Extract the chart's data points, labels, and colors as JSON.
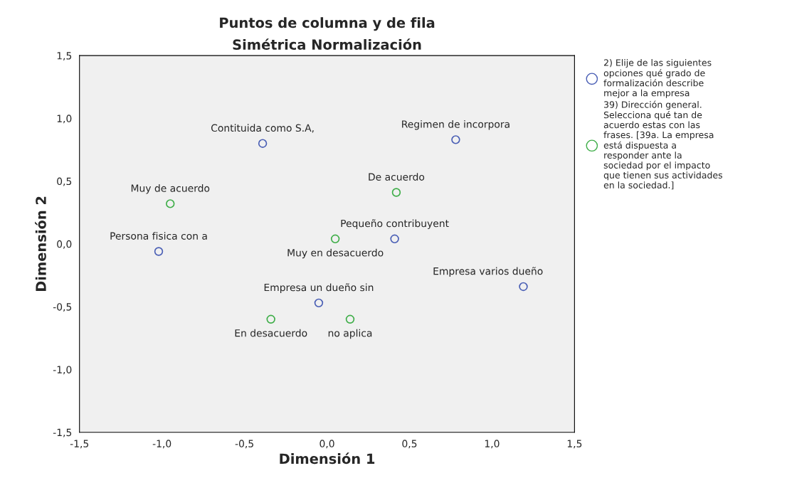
{
  "chart_data": {
    "type": "scatter",
    "title": "Puntos de columna y de fila\nSimétrica Normalización",
    "xlabel": "Dimensión 1",
    "ylabel": "Dimensión 2",
    "xlim": [
      -1.5,
      1.5
    ],
    "ylim": [
      -1.5,
      1.5
    ],
    "xticks": [
      {
        "value": -1.5,
        "label": "-1,5"
      },
      {
        "value": -1.0,
        "label": "-1,0"
      },
      {
        "value": -0.5,
        "label": "-0,5"
      },
      {
        "value": 0.0,
        "label": "0,0"
      },
      {
        "value": 0.5,
        "label": "0,5"
      },
      {
        "value": 1.0,
        "label": "1,0"
      },
      {
        "value": 1.5,
        "label": "1,5"
      }
    ],
    "yticks": [
      {
        "value": -1.5,
        "label": "-1,5"
      },
      {
        "value": -1.0,
        "label": "-1,0"
      },
      {
        "value": -0.5,
        "label": "-0,5"
      },
      {
        "value": 0.0,
        "label": "0,0"
      },
      {
        "value": 0.5,
        "label": "0,5"
      },
      {
        "value": 1.0,
        "label": "1,0"
      },
      {
        "value": 1.5,
        "label": "1,5"
      }
    ],
    "grid": false,
    "legend": "right",
    "marker": "circle",
    "series": [
      {
        "name": "2) Elije de las siguientes\nopciones qué grado de\nformalización describe\nmejor a la empresa",
        "color": "#4a5fb5",
        "x": [
          -0.39,
          0.78,
          -1.02,
          0.41,
          1.19,
          -0.05
        ],
        "values": [
          0.8,
          0.83,
          -0.06,
          0.04,
          -0.34,
          -0.47
        ]
      },
      {
        "name": "39) Dirección general.\nSelecciona qué tan de\nacuerdo estas con las\nfrases. [39a. La empresa\nestá dispuesta a\nresponder ante la\nsociedad por el impacto\nque tienen sus actividades\nen la sociedad.]",
        "color": "#3fae49",
        "x": [
          -0.95,
          0.42,
          0.05,
          -0.34,
          0.14
        ],
        "values": [
          0.32,
          0.41,
          0.04,
          -0.6,
          -0.6
        ]
      }
    ],
    "annotations": [
      {
        "text": "Contituida como S.A,",
        "x": -0.39,
        "y": 0.8
      },
      {
        "text": "Regimen de incorpora",
        "x": 0.78,
        "y": 0.83
      },
      {
        "text": "Persona fisica con a",
        "x": -1.02,
        "y": -0.06
      },
      {
        "text": "Pequeño contribuyent",
        "x": 0.41,
        "y": 0.04
      },
      {
        "text": "Empresa varios dueño",
        "x": 1.19,
        "y": -0.34
      },
      {
        "text": "Empresa un dueño sin",
        "x": -0.05,
        "y": -0.47
      },
      {
        "text": "Muy de acuerdo",
        "x": -0.95,
        "y": 0.32
      },
      {
        "text": "De acuerdo",
        "x": 0.42,
        "y": 0.41
      },
      {
        "text": "Muy en desacuerdo",
        "x": 0.05,
        "y": 0.04
      },
      {
        "text": "En desacuerdo",
        "x": -0.34,
        "y": -0.6
      },
      {
        "text": "no aplica",
        "x": 0.14,
        "y": -0.6
      }
    ]
  }
}
